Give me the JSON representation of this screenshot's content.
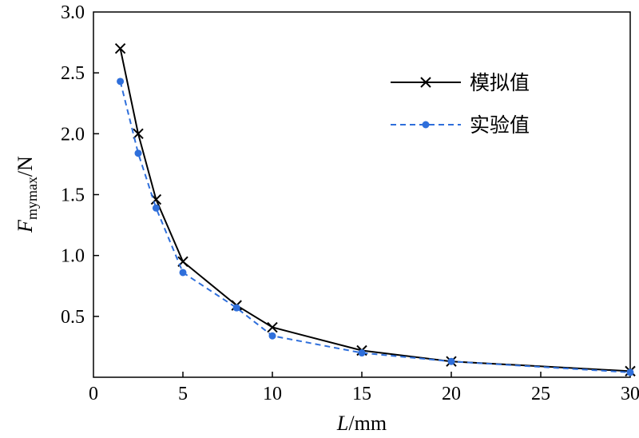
{
  "chart_data": {
    "type": "line",
    "x_tick_labels": [
      "0",
      "5",
      "10",
      "15",
      "20",
      "25",
      "30"
    ],
    "x_ticks": [
      0,
      5,
      10,
      15,
      20,
      25,
      30
    ],
    "y_tick_labels": [
      "0.5",
      "1.0",
      "1.5",
      "2.0",
      "2.5",
      "3.0"
    ],
    "y_ticks": [
      0.5,
      1.0,
      1.5,
      2.0,
      2.5,
      3.0
    ],
    "xlabel": {
      "italic": "L",
      "rest": "/mm"
    },
    "ylabel": {
      "italic": "F",
      "sub": "mymax",
      "rest": "/N"
    },
    "xlim": [
      0,
      30
    ],
    "ylim": [
      0,
      3.0
    ],
    "grid": false,
    "legend_position": "top-right",
    "series": [
      {
        "name": "模拟值",
        "color": "#000000",
        "line": "solid",
        "marker": "x",
        "x": [
          1.5,
          2.5,
          3.5,
          5,
          8,
          10,
          15,
          20,
          30
        ],
        "y": [
          2.7,
          2.0,
          1.46,
          0.95,
          0.59,
          0.41,
          0.22,
          0.13,
          0.05
        ]
      },
      {
        "name": "实验值",
        "color": "#2f6fdb",
        "line": "dashed",
        "marker": "dot",
        "x": [
          1.5,
          2.5,
          3.5,
          5,
          8,
          10,
          15,
          20,
          30
        ],
        "y": [
          2.43,
          1.84,
          1.39,
          0.86,
          0.57,
          0.34,
          0.2,
          0.13,
          0.04
        ]
      }
    ]
  }
}
